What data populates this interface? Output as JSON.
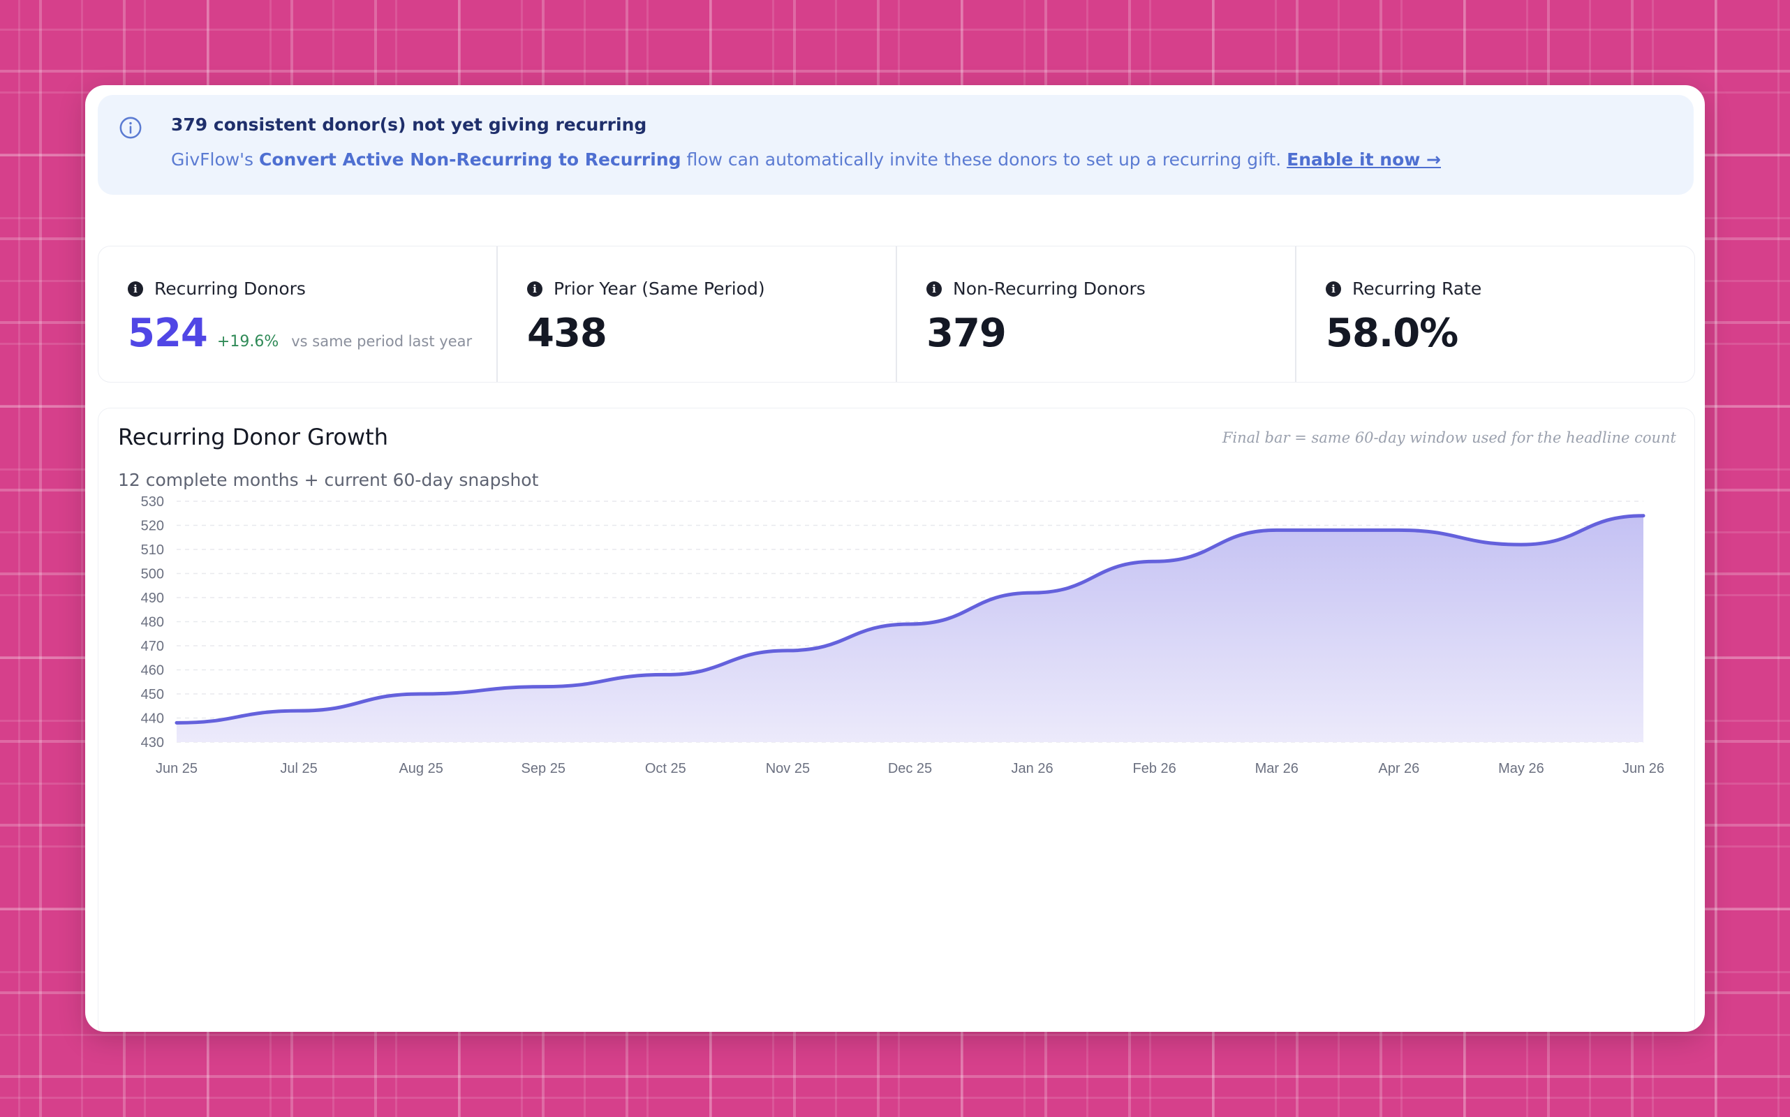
{
  "banner": {
    "icon": "info-circle-icon",
    "title": "379 consistent donor(s) not yet giving recurring",
    "body_prefix": "GivFlow's ",
    "flow_name": "Convert Active Non-Recurring to Recurring",
    "body_suffix": " flow can automatically invite these donors to set up a recurring gift. ",
    "link_label": "Enable it now →"
  },
  "stats": [
    {
      "label": "Recurring Donors",
      "value": "524",
      "delta": "+19.6%",
      "delta_note": "vs same period last year"
    },
    {
      "label": "Prior Year (Same Period)",
      "value": "438"
    },
    {
      "label": "Non-Recurring Donors",
      "value": "379"
    },
    {
      "label": "Recurring Rate",
      "value": "58.0%"
    }
  ],
  "chart": {
    "title": "Recurring Donor Growth",
    "subtitle": "12 complete months + current 60-day snapshot",
    "note": "Final bar = same 60-day window used for the headline count"
  },
  "chart_data": {
    "type": "area",
    "x": [
      "Jun 25",
      "Jul 25",
      "Aug 25",
      "Sep 25",
      "Oct 25",
      "Nov 25",
      "Dec 25",
      "Jan 26",
      "Feb 26",
      "Mar 26",
      "Apr 26",
      "May 26",
      "Jun 26"
    ],
    "values": [
      438,
      443,
      450,
      453,
      458,
      468,
      479,
      492,
      505,
      518,
      518,
      512,
      524
    ],
    "ylim": [
      430,
      530
    ],
    "yticks": [
      "430",
      "440",
      "450",
      "460",
      "470",
      "480",
      "490",
      "500",
      "510",
      "520",
      "530"
    ],
    "grid": true,
    "colors": {
      "line": "#6461dc",
      "fill_top": "#c4c1f3",
      "fill_bottom": "#eceafb",
      "grid": "#e8e9ee"
    }
  }
}
